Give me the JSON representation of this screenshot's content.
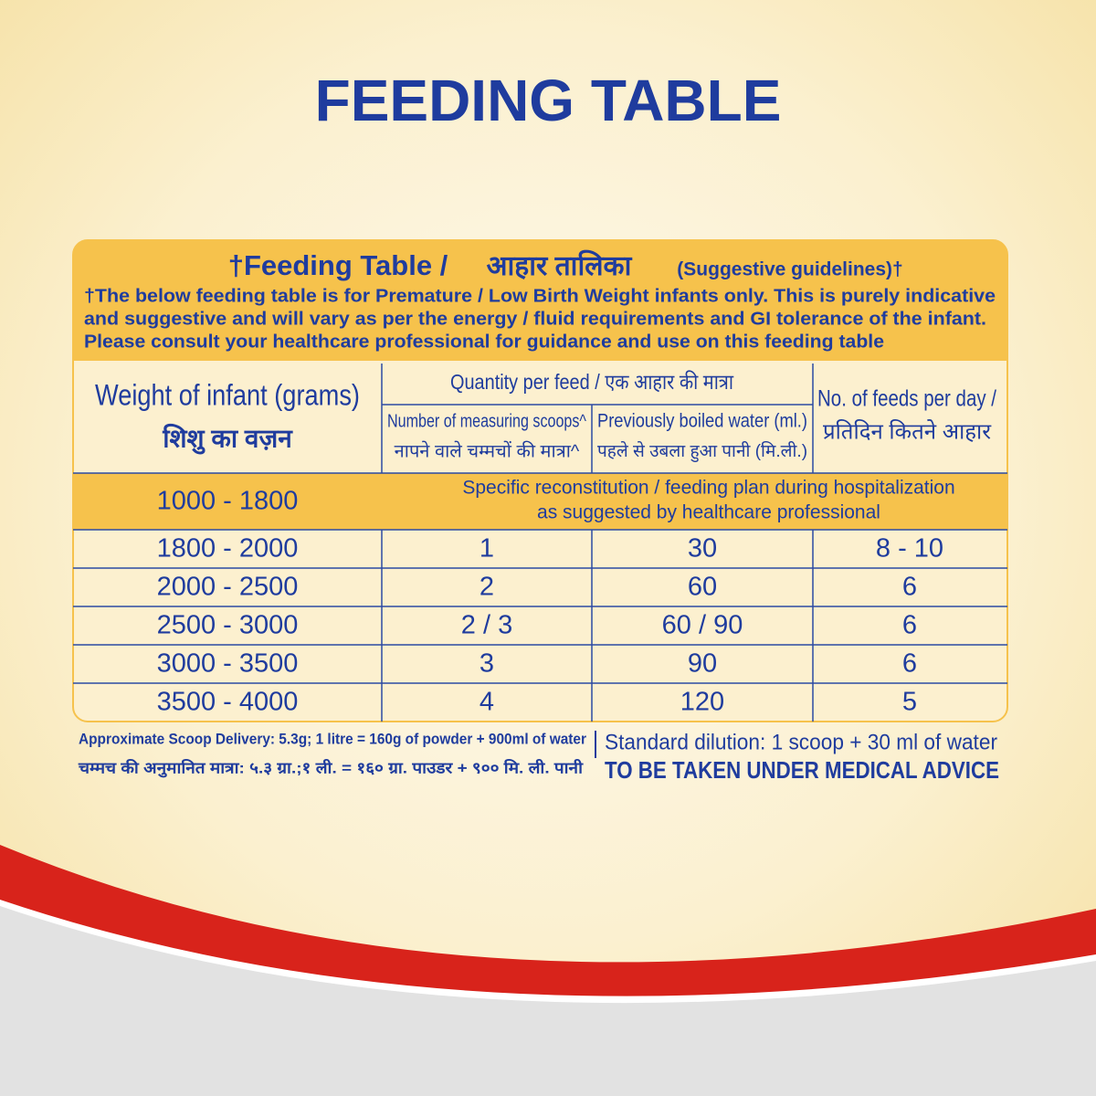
{
  "header": {
    "title": "FEEDING TABLE"
  },
  "panel": {
    "title_main": "†Feeding Table /",
    "title_hindi": "आहार तालिका",
    "title_note": "(Suggestive guidelines)†",
    "note_lines": [
      "†The below feeding table is for Premature / Low Birth Weight infants only.  This is purely indicative",
      "and suggestive and will vary as per the energy / fluid requirements and GI tolerance of the infant.",
      "Please consult your healthcare professional for guidance and use on this feeding table"
    ]
  },
  "table": {
    "columns": {
      "weight": [
        "Weight of infant (grams)",
        "शिशु का वज़न"
      ],
      "quantity": "Quantity per feed / एक आहार की मात्रा",
      "scoops": [
        "Number of measuring scoops^",
        "नापने वाले चम्मचों की मात्रा^"
      ],
      "water": [
        "Previously boiled water (ml.)",
        "पहले से उबला हुआ पानी (मि.ली.)"
      ],
      "feeds": [
        "No. of feeds per day /",
        "प्रतिदिन कितने आहार"
      ]
    },
    "special_row": {
      "weight": "1000 - 1800",
      "note": [
        "Specific reconstitution / feeding plan during hospitalization",
        "as suggested by healthcare professional"
      ]
    },
    "rows": [
      [
        "1800 - 2000",
        "1",
        "30",
        "8 - 10"
      ],
      [
        "2000 - 2500",
        "2",
        "60",
        "6"
      ],
      [
        "2500 - 3000",
        "2 / 3",
        "60 / 90",
        "6"
      ],
      [
        "3000 - 3500",
        "3",
        "90",
        "6"
      ],
      [
        "3500 - 4000",
        "4",
        "120",
        "5"
      ]
    ]
  },
  "footer": {
    "left": [
      "Approximate Scoop Delivery: 5.3g; 1 litre = 160g of powder + 900ml of water",
      "चम्मच की अनुमानित मात्रा: ५.३ ग्रा.;१ ली. = १६० ग्रा. पाउडर + ९०० मि. ली. पानी"
    ],
    "right": [
      "Standard dilution: 1 scoop + 30 ml of water",
      "TO BE TAKEN UNDER MEDICAL ADVICE"
    ]
  }
}
